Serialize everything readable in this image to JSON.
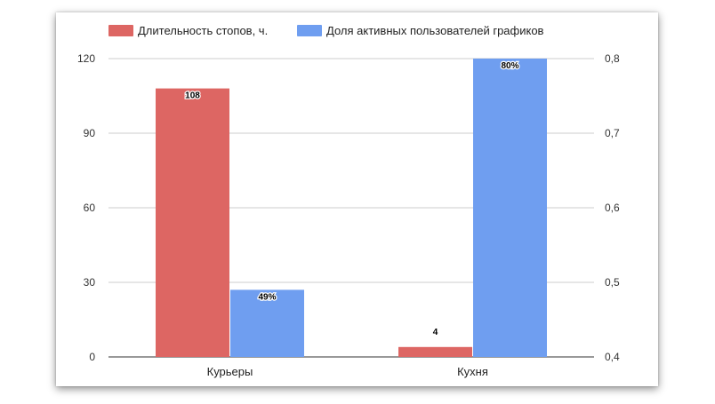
{
  "chart_data": {
    "type": "bar",
    "categories": [
      "Курьеры",
      "Кухня"
    ],
    "series": [
      {
        "name": "Длительность стопов, ч.",
        "axis": "left",
        "color": "#dd6663",
        "values": [
          108,
          4
        ],
        "labels": [
          "108",
          "4"
        ]
      },
      {
        "name": "Доля активных пользователей графиков",
        "axis": "right",
        "color": "#6f9ef0",
        "values": [
          0.49,
          0.8
        ],
        "labels": [
          "49%",
          "80%"
        ]
      }
    ],
    "y_left": {
      "range": [
        0,
        120
      ],
      "ticks": [
        0,
        30,
        60,
        90,
        120
      ],
      "tick_labels": [
        "0",
        "30",
        "60",
        "90",
        "120"
      ]
    },
    "y_right": {
      "range": [
        0.4,
        0.8
      ],
      "ticks": [
        0.4,
        0.5,
        0.6,
        0.7,
        0.8
      ],
      "tick_labels": [
        "0,4",
        "0,5",
        "0,6",
        "0,7",
        "0,8"
      ]
    },
    "grid": true,
    "legend": "top"
  }
}
